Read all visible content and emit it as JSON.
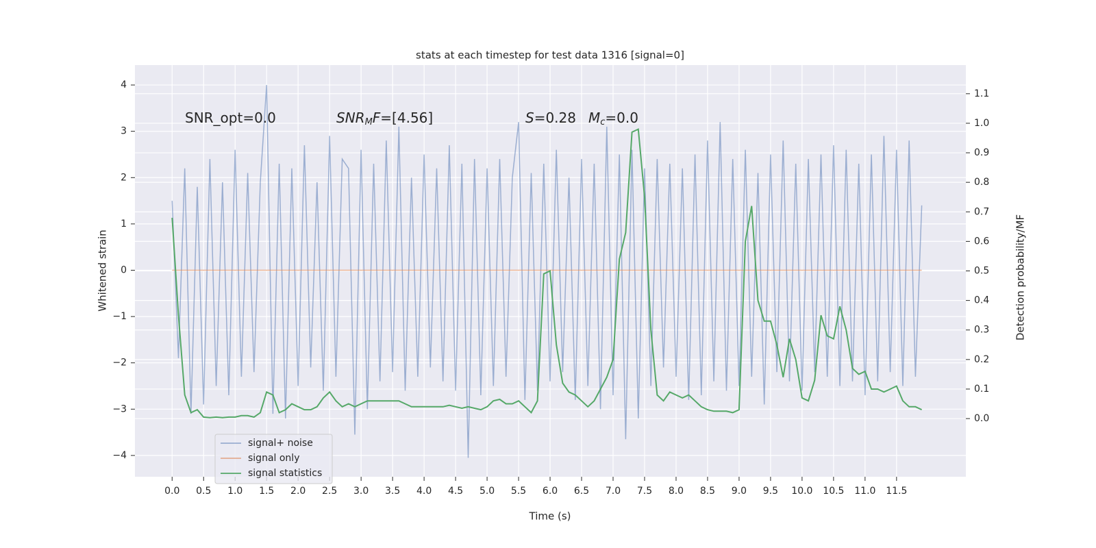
{
  "chart_data": {
    "type": "line",
    "title": "stats at each timestep for test data 1316 [signal=0]",
    "xlabel": "Time (s)",
    "ylabel": "Whitened strain",
    "y2label": "Detection probability/MF",
    "grid": true,
    "background": "#eaeaf2",
    "legend": "lower left",
    "xlim": [
      -0.59,
      12.6
    ],
    "ylim": [
      -4.46,
      4.43
    ],
    "y2lim": [
      -0.197,
      1.197
    ],
    "xticks": [
      {
        "value": 0,
        "label": "0.0"
      },
      0.5,
      {
        "value": 1,
        "label": "1.0"
      },
      1.5,
      {
        "value": 2,
        "label": "2.0"
      },
      2.5,
      {
        "value": 3,
        "label": "3.0"
      },
      3.5,
      {
        "value": 4,
        "label": "4.0"
      },
      4.5,
      {
        "value": 5,
        "label": "5.0"
      },
      5.5,
      {
        "value": 6,
        "label": "6.0"
      },
      6.5,
      {
        "value": 7,
        "label": "7.0"
      },
      7.5,
      {
        "value": 8,
        "label": "8.0"
      },
      8.5,
      {
        "value": 9,
        "label": "9.0"
      },
      9.5,
      {
        "value": 10,
        "label": "10.0"
      },
      10.5,
      {
        "value": 11,
        "label": "11.0"
      },
      11.5
    ],
    "yticks": [
      {
        "value": -4,
        "label": "−4"
      },
      {
        "value": -3,
        "label": "−3"
      },
      {
        "value": -2,
        "label": "−2"
      },
      {
        "value": -1,
        "label": "−1"
      },
      0,
      1,
      2,
      3,
      4
    ],
    "y2ticks": [
      {
        "value": 0,
        "label": "0.0"
      },
      0.1,
      0.2,
      0.3,
      0.4,
      0.5,
      0.6,
      0.7,
      0.8,
      0.9,
      {
        "value": 1,
        "label": "1.0"
      },
      1.1
    ],
    "annotations": [
      [
        {
          "text": "SNR_opt=0.0",
          "italic": false,
          "sub": false
        }
      ],
      [
        {
          "text": "SNR",
          "italic": true,
          "sub": false
        },
        {
          "text": "M",
          "italic": true,
          "sub": true
        },
        {
          "text": "F",
          "italic": true,
          "sub": false
        },
        {
          "text": "=[4.56]",
          "italic": false,
          "sub": false
        }
      ],
      [
        {
          "text": "S",
          "italic": true,
          "sub": false
        },
        {
          "text": "=0.28",
          "italic": false,
          "sub": false
        }
      ],
      [
        {
          "text": "M",
          "italic": true,
          "sub": false
        },
        {
          "text": "c",
          "italic": true,
          "sub": true
        },
        {
          "text": "=0.0",
          "italic": false,
          "sub": false
        }
      ]
    ],
    "x": [
      0,
      0.1,
      0.2,
      0.3,
      0.4,
      0.5,
      0.6,
      0.7,
      0.8,
      0.9,
      1,
      1.1,
      1.2,
      1.3,
      1.4,
      1.5,
      1.6,
      1.7,
      1.8,
      1.9,
      2,
      2.1,
      2.2,
      2.3,
      2.4,
      2.5,
      2.6,
      2.7,
      2.8,
      2.9,
      3,
      3.1,
      3.2,
      3.3,
      3.4,
      3.5,
      3.6,
      3.7,
      3.8,
      3.9,
      4,
      4.1,
      4.2,
      4.3,
      4.4,
      4.5,
      4.6,
      4.7,
      4.8,
      4.9,
      5,
      5.1,
      5.2,
      5.3,
      5.4,
      5.5,
      5.6,
      5.7,
      5.8,
      5.9,
      6,
      6.1,
      6.2,
      6.3,
      6.4,
      6.5,
      6.6,
      6.7,
      6.8,
      6.9,
      7,
      7.1,
      7.2,
      7.3,
      7.4,
      7.5,
      7.6,
      7.7,
      7.8,
      7.9,
      8,
      8.1,
      8.2,
      8.3,
      8.4,
      8.5,
      8.6,
      8.7,
      8.8,
      8.9,
      9,
      9.1,
      9.2,
      9.3,
      9.4,
      9.5,
      9.6,
      9.7,
      9.8,
      9.9,
      10,
      10.1,
      10.2,
      10.3,
      10.4,
      10.5,
      10.6,
      10.7,
      10.8,
      10.9,
      11,
      11.1,
      11.2,
      11.3,
      11.4,
      11.5,
      11.6,
      11.7,
      11.8,
      11.9
    ],
    "series": [
      {
        "name": "signal+ noise",
        "color": "rgba(76,114,176,0.5)",
        "values": [
          1.5,
          -1.9,
          2.2,
          -3.1,
          1.8,
          -2.9,
          2.4,
          -2.5,
          1.9,
          -2.7,
          2.6,
          -2.3,
          2.1,
          -2.2,
          1.9,
          4.0,
          -3.1,
          2.3,
          -3.2,
          2.2,
          -2.5,
          2.7,
          -2.1,
          1.9,
          -2.6,
          2.9,
          -2.3,
          2.4,
          2.2,
          -3.55,
          2.6,
          -3.0,
          2.3,
          -2.4,
          2.8,
          -2.2,
          3.1,
          -2.6,
          2.0,
          -2.3,
          2.5,
          -2.1,
          2.2,
          -2.4,
          2.7,
          -2.6,
          2.3,
          -4.05,
          2.4,
          -2.7,
          2.2,
          -2.5,
          2.4,
          -2.3,
          2.0,
          3.2,
          -2.8,
          2.1,
          -2.6,
          2.3,
          -2.4,
          2.6,
          -2.2,
          2.0,
          -2.8,
          2.4,
          -2.5,
          2.3,
          -3.0,
          3.1,
          -2.7,
          2.5,
          -3.65,
          2.6,
          -3.2,
          2.2,
          -2.5,
          2.4,
          -2.1,
          2.3,
          -2.3,
          2.2,
          -2.8,
          2.5,
          -2.7,
          2.8,
          -2.4,
          3.2,
          -2.6,
          2.4,
          -2.5,
          2.6,
          -2.3,
          2.1,
          -2.9,
          2.5,
          -2.2,
          2.8,
          -2.4,
          2.3,
          -2.6,
          2.4,
          -2.2,
          2.5,
          -2.3,
          2.7,
          -2.5,
          2.6,
          -2.4,
          2.3,
          -2.7,
          2.5,
          -2.4,
          2.9,
          -2.2,
          2.6,
          -2.5,
          2.8,
          -2.3,
          1.4
        ]
      },
      {
        "name": "signal only",
        "color": "rgba(221,132,82,0.6)",
        "values": [
          0,
          0,
          0,
          0,
          0,
          0,
          0,
          0,
          0,
          0,
          0,
          0,
          0,
          0,
          0,
          0,
          0,
          0,
          0,
          0,
          0,
          0,
          0,
          0,
          0,
          0,
          0,
          0,
          0,
          0,
          0,
          0,
          0,
          0,
          0,
          0,
          0,
          0,
          0,
          0,
          0,
          0,
          0,
          0,
          0,
          0,
          0,
          0,
          0,
          0,
          0,
          0,
          0,
          0,
          0,
          0,
          0,
          0,
          0,
          0,
          0,
          0,
          0,
          0,
          0,
          0,
          0,
          0,
          0,
          0,
          0,
          0,
          0,
          0,
          0,
          0,
          0,
          0,
          0,
          0,
          0,
          0,
          0,
          0,
          0,
          0,
          0,
          0,
          0,
          0,
          0,
          0,
          0,
          0,
          0,
          0,
          0,
          0,
          0,
          0,
          0,
          0,
          0,
          0,
          0,
          0,
          0,
          0,
          0,
          0,
          0,
          0,
          0,
          0,
          0,
          0,
          0,
          0,
          0,
          0
        ]
      },
      {
        "name": "signal statistics",
        "color": "#55a868",
        "axis": "y2",
        "values": [
          0.68,
          0.35,
          0.08,
          0.02,
          0.03,
          0.005,
          0.003,
          0.005,
          0.003,
          0.005,
          0.005,
          0.01,
          0.01,
          0.005,
          0.02,
          0.09,
          0.08,
          0.02,
          0.03,
          0.05,
          0.04,
          0.03,
          0.03,
          0.04,
          0.07,
          0.09,
          0.06,
          0.04,
          0.05,
          0.04,
          0.05,
          0.06,
          0.06,
          0.06,
          0.06,
          0.06,
          0.06,
          0.05,
          0.04,
          0.04,
          0.04,
          0.04,
          0.04,
          0.04,
          0.045,
          0.04,
          0.035,
          0.04,
          0.035,
          0.03,
          0.04,
          0.06,
          0.065,
          0.05,
          0.05,
          0.06,
          0.04,
          0.02,
          0.06,
          0.49,
          0.5,
          0.25,
          0.12,
          0.09,
          0.08,
          0.06,
          0.04,
          0.06,
          0.1,
          0.14,
          0.2,
          0.54,
          0.63,
          0.97,
          0.98,
          0.75,
          0.3,
          0.08,
          0.06,
          0.09,
          0.08,
          0.07,
          0.08,
          0.06,
          0.04,
          0.03,
          0.025,
          0.025,
          0.025,
          0.02,
          0.03,
          0.6,
          0.72,
          0.4,
          0.33,
          0.33,
          0.25,
          0.14,
          0.27,
          0.2,
          0.07,
          0.06,
          0.13,
          0.35,
          0.28,
          0.27,
          0.38,
          0.3,
          0.17,
          0.15,
          0.16,
          0.1,
          0.1,
          0.09,
          0.1,
          0.11,
          0.06,
          0.04,
          0.04,
          0.03
        ]
      }
    ]
  }
}
